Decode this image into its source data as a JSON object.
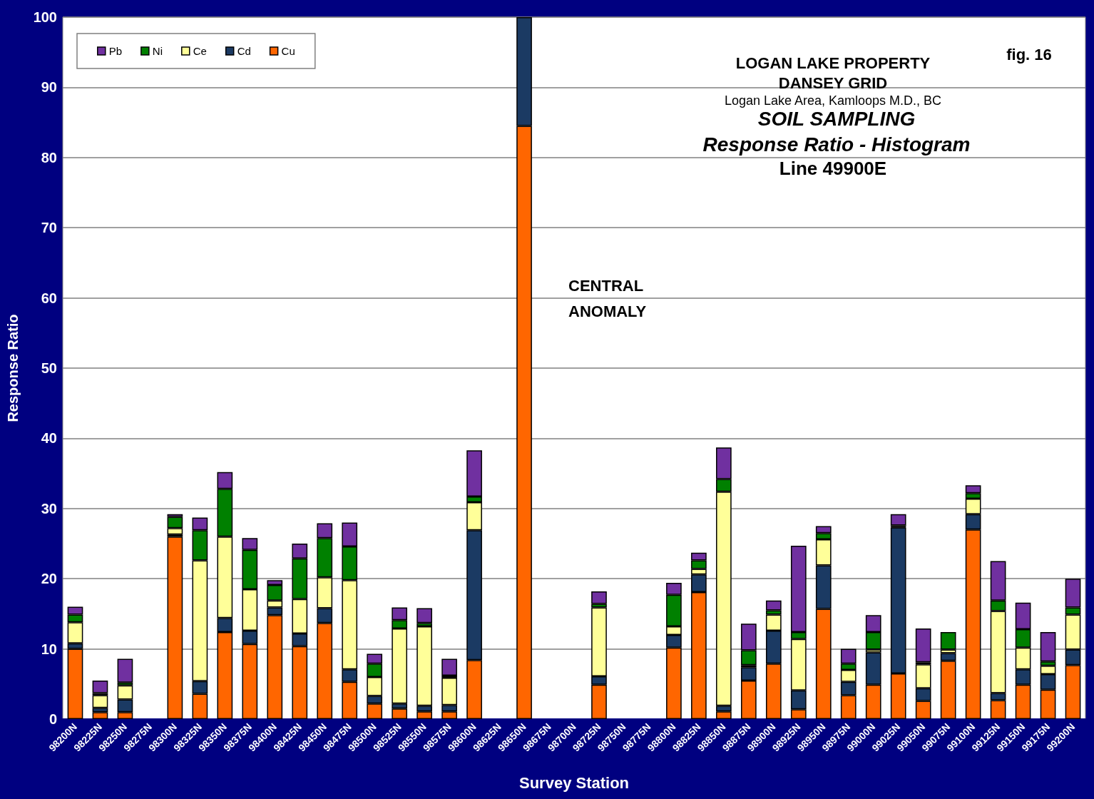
{
  "chart_data": {
    "type": "bar",
    "stacked": true,
    "title": "SOIL SAMPLING",
    "subtitle": "Response Ratio - Histogram",
    "xlabel": "Survey Station",
    "ylabel": "Response Ratio",
    "annotations": [
      "LOGAN LAKE PROPERTY",
      "DANSEY GRID",
      "Logan Lake Area, Kamloops M.D., BC",
      "Line 49900E",
      "fig. 16",
      "CENTRAL ANOMALY"
    ],
    "categories": [
      "98200N",
      "98225N",
      "98250N",
      "98275N",
      "98300N",
      "98325N",
      "98350N",
      "98375N",
      "98400N",
      "98425N",
      "98450N",
      "98475N",
      "98500N",
      "98525N",
      "98550N",
      "98575N",
      "98600N",
      "98625N",
      "98650N",
      "98675N",
      "98700N",
      "98725N",
      "98750N",
      "98775N",
      "98800N",
      "98825N",
      "98850N",
      "98875N",
      "98900N",
      "98925N",
      "98950N",
      "98975N",
      "99000N",
      "99025N",
      "99050N",
      "99075N",
      "99100N",
      "99125N",
      "99150N",
      "99175N",
      "99200N"
    ],
    "series": [
      {
        "name": "Cu",
        "color": "#ff6600",
        "values": [
          10.0,
          1.0,
          1.0,
          0,
          26.0,
          3.6,
          12.4,
          10.7,
          14.8,
          10.4,
          13.7,
          5.3,
          2.2,
          1.5,
          1.1,
          1.1,
          8.4,
          0,
          84.5,
          0,
          0,
          4.9,
          0,
          0,
          10.2,
          18.1,
          1.1,
          5.5,
          7.9,
          1.4,
          15.7,
          3.4,
          4.9,
          6.5,
          2.6,
          8.3,
          27.0,
          2.7,
          4.9,
          4.2,
          7.7
        ]
      },
      {
        "name": "Cd",
        "color": "#1b3a63",
        "values": [
          0.8,
          0.6,
          1.8,
          0,
          0.3,
          1.8,
          2.0,
          1.9,
          1.1,
          1.8,
          2.1,
          1.8,
          1.1,
          0.7,
          0.8,
          0.9,
          18.5,
          0,
          15.5,
          0,
          0,
          1.2,
          0,
          0,
          1.8,
          2.5,
          0.8,
          1.9,
          4.7,
          2.7,
          6.2,
          1.9,
          4.6,
          20.8,
          1.8,
          1.1,
          2.2,
          1.0,
          2.2,
          2.2,
          2.2
        ]
      },
      {
        "name": "Ce",
        "color": "#ffff99",
        "values": [
          3.0,
          1.8,
          2.0,
          0,
          0.9,
          17.2,
          11.6,
          5.9,
          1.0,
          4.9,
          4.4,
          12.7,
          2.7,
          10.7,
          11.3,
          3.9,
          4.0,
          0,
          null,
          0,
          0,
          9.8,
          0,
          0,
          1.2,
          0.8,
          30.5,
          0.3,
          2.3,
          7.3,
          3.7,
          1.7,
          0.4,
          0.1,
          3.4,
          0.5,
          2.2,
          11.7,
          3.1,
          1.2,
          5.0
        ]
      },
      {
        "name": "Ni",
        "color": "#008000",
        "values": [
          1.1,
          0.3,
          0.4,
          0,
          1.6,
          4.3,
          6.8,
          5.6,
          2.2,
          5.8,
          5.6,
          4.8,
          1.9,
          1.2,
          0.5,
          0.3,
          0.8,
          0,
          null,
          0,
          0,
          0.5,
          0,
          0,
          4.5,
          1.2,
          1.8,
          2.1,
          0.6,
          1.0,
          0.9,
          0.9,
          2.5,
          0.2,
          0.3,
          2.5,
          0.8,
          1.5,
          2.6,
          0.6,
          1.0
        ]
      },
      {
        "name": "Pb",
        "color": "#7030a0",
        "values": [
          1.1,
          1.8,
          3.4,
          0,
          0.4,
          1.8,
          2.4,
          1.7,
          0.7,
          2.1,
          2.1,
          3.4,
          1.4,
          1.8,
          2.1,
          2.4,
          6.6,
          0,
          null,
          0,
          0,
          1.8,
          0,
          0,
          1.7,
          1.1,
          4.5,
          3.8,
          1.4,
          12.3,
          1.0,
          2.1,
          2.4,
          1.6,
          4.8,
          0,
          1.1,
          5.6,
          3.8,
          4.2,
          4.1
        ]
      }
    ],
    "ylim": [
      0,
      100
    ],
    "yticks": [
      0,
      10,
      20,
      30,
      40,
      50,
      60,
      70,
      80,
      90,
      100
    ],
    "grid": "y",
    "legend": "top left"
  }
}
